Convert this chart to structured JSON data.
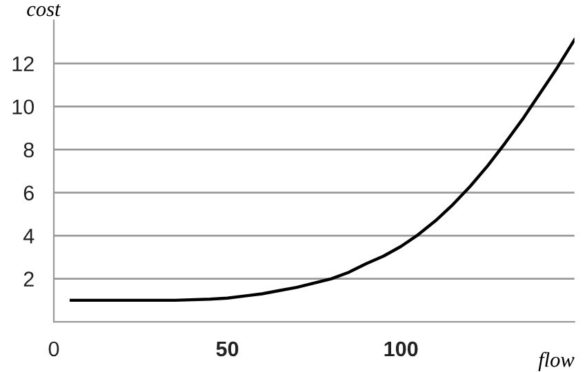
{
  "chart_data": {
    "type": "line",
    "xlabel": "flow",
    "ylabel": "cost",
    "x": [
      5,
      20,
      35,
      45,
      50,
      55,
      60,
      65,
      70,
      75,
      80,
      85,
      90,
      95,
      100,
      105,
      110,
      115,
      120,
      125,
      130,
      135,
      140,
      145,
      150
    ],
    "series": [
      {
        "color": "#000000",
        "values": [
          1.0,
          1.0,
          1.0,
          1.05,
          1.1,
          1.2,
          1.3,
          1.45,
          1.6,
          1.8,
          2.0,
          2.3,
          2.7,
          3.05,
          3.5,
          4.05,
          4.7,
          5.45,
          6.3,
          7.25,
          8.3,
          9.4,
          10.6,
          11.8,
          13.1
        ]
      }
    ],
    "xlim": [
      0,
      150
    ],
    "ylim": [
      0,
      14
    ],
    "xticks": [
      0,
      50,
      100
    ],
    "yticks": [
      2,
      4,
      6,
      8,
      10,
      12
    ],
    "grid": "y",
    "marker": "none",
    "line_style": "solid"
  }
}
